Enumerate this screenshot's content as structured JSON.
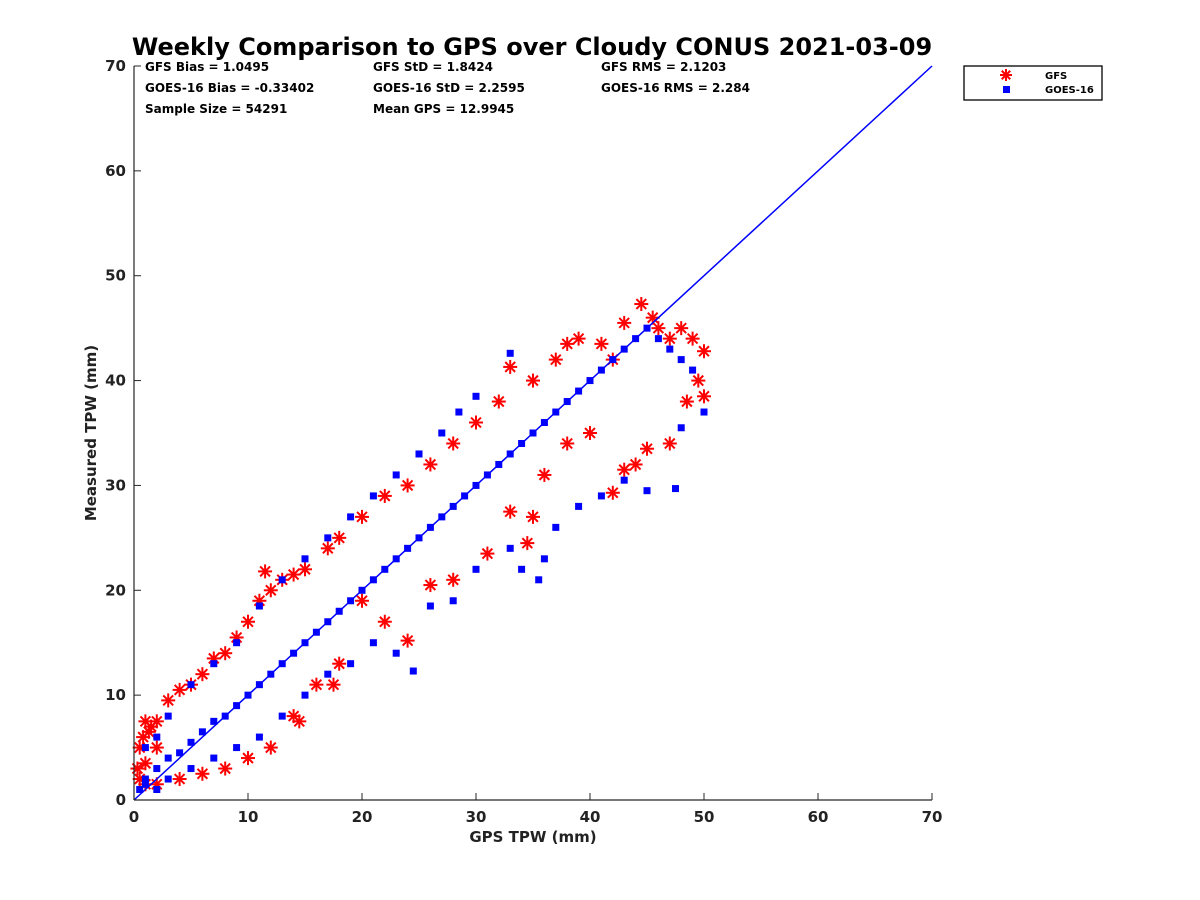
{
  "chart_data": {
    "type": "scatter",
    "title": "Weekly Comparison to GPS over Cloudy CONUS 2021-03-09",
    "xlabel": "GPS TPW (mm)",
    "ylabel": "Measured TPW (mm)",
    "xlim": [
      0,
      70
    ],
    "ylim": [
      0,
      70
    ],
    "xticks": [
      "0",
      "10",
      "20",
      "30",
      "40",
      "50",
      "60",
      "70"
    ],
    "yticks": [
      "0",
      "10",
      "20",
      "30",
      "40",
      "50",
      "60",
      "70"
    ],
    "grid": false,
    "legend_position": "outside-top-right",
    "stats": [
      [
        "GFS Bias = 1.0495",
        "GFS StD = 1.8424",
        "GFS RMS = 2.1203"
      ],
      [
        "GOES-16 Bias = -0.33402",
        "GOES-16 StD = 2.2595",
        "GOES-16 RMS = 2.284"
      ],
      [
        "Sample Size = 54291",
        "Mean GPS = 12.9945",
        ""
      ]
    ],
    "reference_line": {
      "x": [
        0,
        70
      ],
      "y": [
        0,
        70
      ],
      "color": "#0000ff"
    },
    "series": [
      {
        "name": "GFS",
        "marker": "asterisk",
        "color": "#ff0000",
        "points": [
          [
            0.3,
            3
          ],
          [
            0.5,
            5
          ],
          [
            0.8,
            6
          ],
          [
            1,
            7.5
          ],
          [
            1.3,
            6.5
          ],
          [
            1.5,
            7
          ],
          [
            2,
            7.5
          ],
          [
            3,
            9.5
          ],
          [
            4,
            10.5
          ],
          [
            5,
            11
          ],
          [
            6,
            12
          ],
          [
            7,
            13.5
          ],
          [
            8,
            14
          ],
          [
            9,
            15.5
          ],
          [
            10,
            17
          ],
          [
            11,
            19
          ],
          [
            11.5,
            21.8
          ],
          [
            12,
            20
          ],
          [
            13,
            21
          ],
          [
            14,
            21.5
          ],
          [
            15,
            22
          ],
          [
            17,
            24
          ],
          [
            18,
            25
          ],
          [
            20,
            27
          ],
          [
            22,
            29
          ],
          [
            24,
            30
          ],
          [
            26,
            32
          ],
          [
            28,
            34
          ],
          [
            30,
            36
          ],
          [
            32,
            38
          ],
          [
            33,
            41.3
          ],
          [
            35,
            40
          ],
          [
            37,
            42
          ],
          [
            38,
            43.5
          ],
          [
            39,
            44
          ],
          [
            41,
            43.5
          ],
          [
            42,
            42
          ],
          [
            43,
            45.5
          ],
          [
            44.5,
            47.3
          ],
          [
            45.5,
            46
          ],
          [
            46,
            45
          ],
          [
            47,
            44
          ],
          [
            48,
            45
          ],
          [
            49,
            44
          ],
          [
            50,
            42.8
          ],
          [
            49.5,
            40
          ],
          [
            50,
            38.5
          ],
          [
            48.5,
            38
          ],
          [
            47,
            34
          ],
          [
            45,
            33.5
          ],
          [
            44,
            32
          ],
          [
            43,
            31.5
          ],
          [
            42,
            29.3
          ],
          [
            40,
            35
          ],
          [
            38,
            34
          ],
          [
            36,
            31
          ],
          [
            35,
            27
          ],
          [
            34.5,
            24.5
          ],
          [
            33,
            27.5
          ],
          [
            31,
            23.5
          ],
          [
            28,
            21
          ],
          [
            26,
            20.5
          ],
          [
            24,
            15.2
          ],
          [
            22,
            17
          ],
          [
            20,
            19
          ],
          [
            18,
            13
          ],
          [
            16,
            11
          ],
          [
            14,
            8
          ],
          [
            12,
            5
          ],
          [
            10,
            4
          ],
          [
            8,
            3
          ],
          [
            6,
            2.5
          ],
          [
            4,
            2
          ],
          [
            2,
            1.5
          ],
          [
            1,
            1.5
          ],
          [
            0.5,
            2
          ],
          [
            1,
            3.5
          ],
          [
            2,
            5
          ],
          [
            14.5,
            7.5
          ],
          [
            17.5,
            11
          ]
        ]
      },
      {
        "name": "GOES-16",
        "marker": "square",
        "color": "#0000ff",
        "points": [
          [
            0.5,
            1
          ],
          [
            1,
            2
          ],
          [
            2,
            3
          ],
          [
            3,
            4
          ],
          [
            4,
            4.5
          ],
          [
            5,
            5.5
          ],
          [
            6,
            6.5
          ],
          [
            7,
            7.5
          ],
          [
            8,
            8
          ],
          [
            9,
            9
          ],
          [
            10,
            10
          ],
          [
            11,
            11
          ],
          [
            12,
            12
          ],
          [
            13,
            13
          ],
          [
            14,
            14
          ],
          [
            15,
            15
          ],
          [
            16,
            16
          ],
          [
            17,
            17
          ],
          [
            18,
            18
          ],
          [
            19,
            19
          ],
          [
            20,
            20
          ],
          [
            21,
            21
          ],
          [
            22,
            22
          ],
          [
            23,
            23
          ],
          [
            24,
            24
          ],
          [
            25,
            25
          ],
          [
            26,
            26
          ],
          [
            27,
            27
          ],
          [
            28,
            28
          ],
          [
            29,
            29
          ],
          [
            30,
            30
          ],
          [
            31,
            31
          ],
          [
            32,
            32
          ],
          [
            33,
            33
          ],
          [
            34,
            34
          ],
          [
            35,
            35
          ],
          [
            36,
            36
          ],
          [
            37,
            37
          ],
          [
            38,
            38
          ],
          [
            39,
            39
          ],
          [
            40,
            40
          ],
          [
            41,
            41
          ],
          [
            42,
            42
          ],
          [
            43,
            43
          ],
          [
            44,
            44
          ],
          [
            45,
            45
          ],
          [
            46,
            44
          ],
          [
            47,
            43
          ],
          [
            48,
            42
          ],
          [
            49,
            41
          ],
          [
            50,
            37
          ],
          [
            48,
            35.5
          ],
          [
            47.5,
            29.7
          ],
          [
            45,
            29.5
          ],
          [
            43,
            30.5
          ],
          [
            41,
            29
          ],
          [
            39,
            28
          ],
          [
            37,
            26
          ],
          [
            36,
            23
          ],
          [
            35.5,
            21
          ],
          [
            34,
            22
          ],
          [
            33,
            24
          ],
          [
            30,
            22
          ],
          [
            28,
            19
          ],
          [
            26,
            18.5
          ],
          [
            24.5,
            12.3
          ],
          [
            23,
            14
          ],
          [
            21,
            15
          ],
          [
            19,
            13
          ],
          [
            17,
            12
          ],
          [
            15,
            10
          ],
          [
            13,
            8
          ],
          [
            11,
            6
          ],
          [
            9,
            5
          ],
          [
            7,
            4
          ],
          [
            5,
            3
          ],
          [
            3,
            2
          ],
          [
            1,
            1.5
          ],
          [
            2,
            1
          ],
          [
            33,
            42.6
          ],
          [
            30,
            38.5
          ],
          [
            28.5,
            37
          ],
          [
            27,
            35
          ],
          [
            25,
            33
          ],
          [
            23,
            31
          ],
          [
            21,
            29
          ],
          [
            19,
            27
          ],
          [
            17,
            25
          ],
          [
            15,
            23
          ],
          [
            13,
            21
          ],
          [
            11,
            18.5
          ],
          [
            9,
            15
          ],
          [
            7,
            13
          ],
          [
            5,
            11
          ],
          [
            3,
            8
          ],
          [
            2,
            6
          ],
          [
            1,
            5
          ]
        ]
      }
    ]
  }
}
